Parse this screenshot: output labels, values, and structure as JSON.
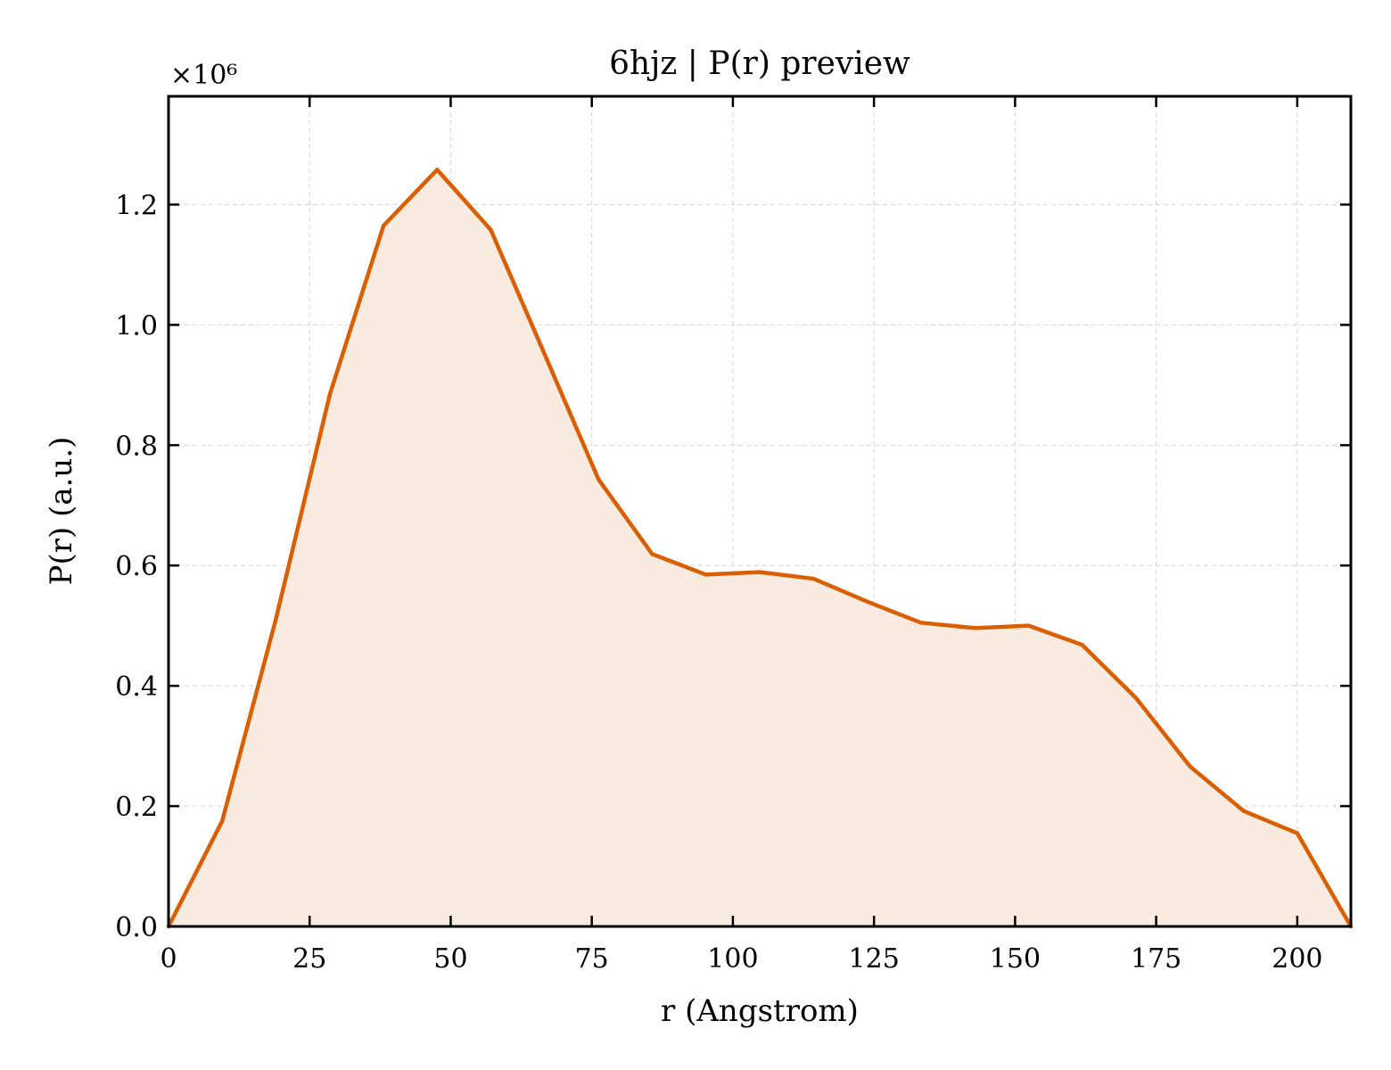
{
  "chart_data": {
    "type": "area",
    "title": "6hjz | P(r) preview",
    "xlabel": "r (Angstrom)",
    "ylabel": "P(r) (a.u.)",
    "y_offset_label": "×10⁶",
    "y_scale_factor": 1000000,
    "xlim": [
      0,
      209.5
    ],
    "ylim": [
      0,
      1.38
    ],
    "xticks": [
      0,
      25,
      50,
      75,
      100,
      125,
      150,
      175,
      200
    ],
    "yticks": [
      0.0,
      0.2,
      0.4,
      0.6,
      0.8,
      1.0,
      1.2
    ],
    "ytick_labels": [
      "0.0",
      "0.2",
      "0.4",
      "0.6",
      "0.8",
      "1.0",
      "1.2"
    ],
    "grid": true,
    "tick_direction": "in",
    "series": [
      {
        "line_color": "#d95f02",
        "fill_color": "#f9ebe0",
        "x": [
          0,
          9.5,
          19.0,
          28.6,
          38.1,
          47.6,
          57.1,
          66.7,
          76.2,
          85.7,
          95.2,
          104.8,
          114.3,
          123.8,
          133.3,
          142.9,
          152.4,
          161.9,
          171.4,
          181.0,
          190.5,
          200.0,
          209.5
        ],
        "y": [
          0.0,
          0.175,
          0.51,
          0.885,
          1.165,
          1.258,
          1.158,
          0.95,
          0.743,
          0.619,
          0.585,
          0.589,
          0.578,
          0.54,
          0.505,
          0.496,
          0.5,
          0.468,
          0.38,
          0.266,
          0.192,
          0.155,
          0.0
        ]
      }
    ]
  }
}
